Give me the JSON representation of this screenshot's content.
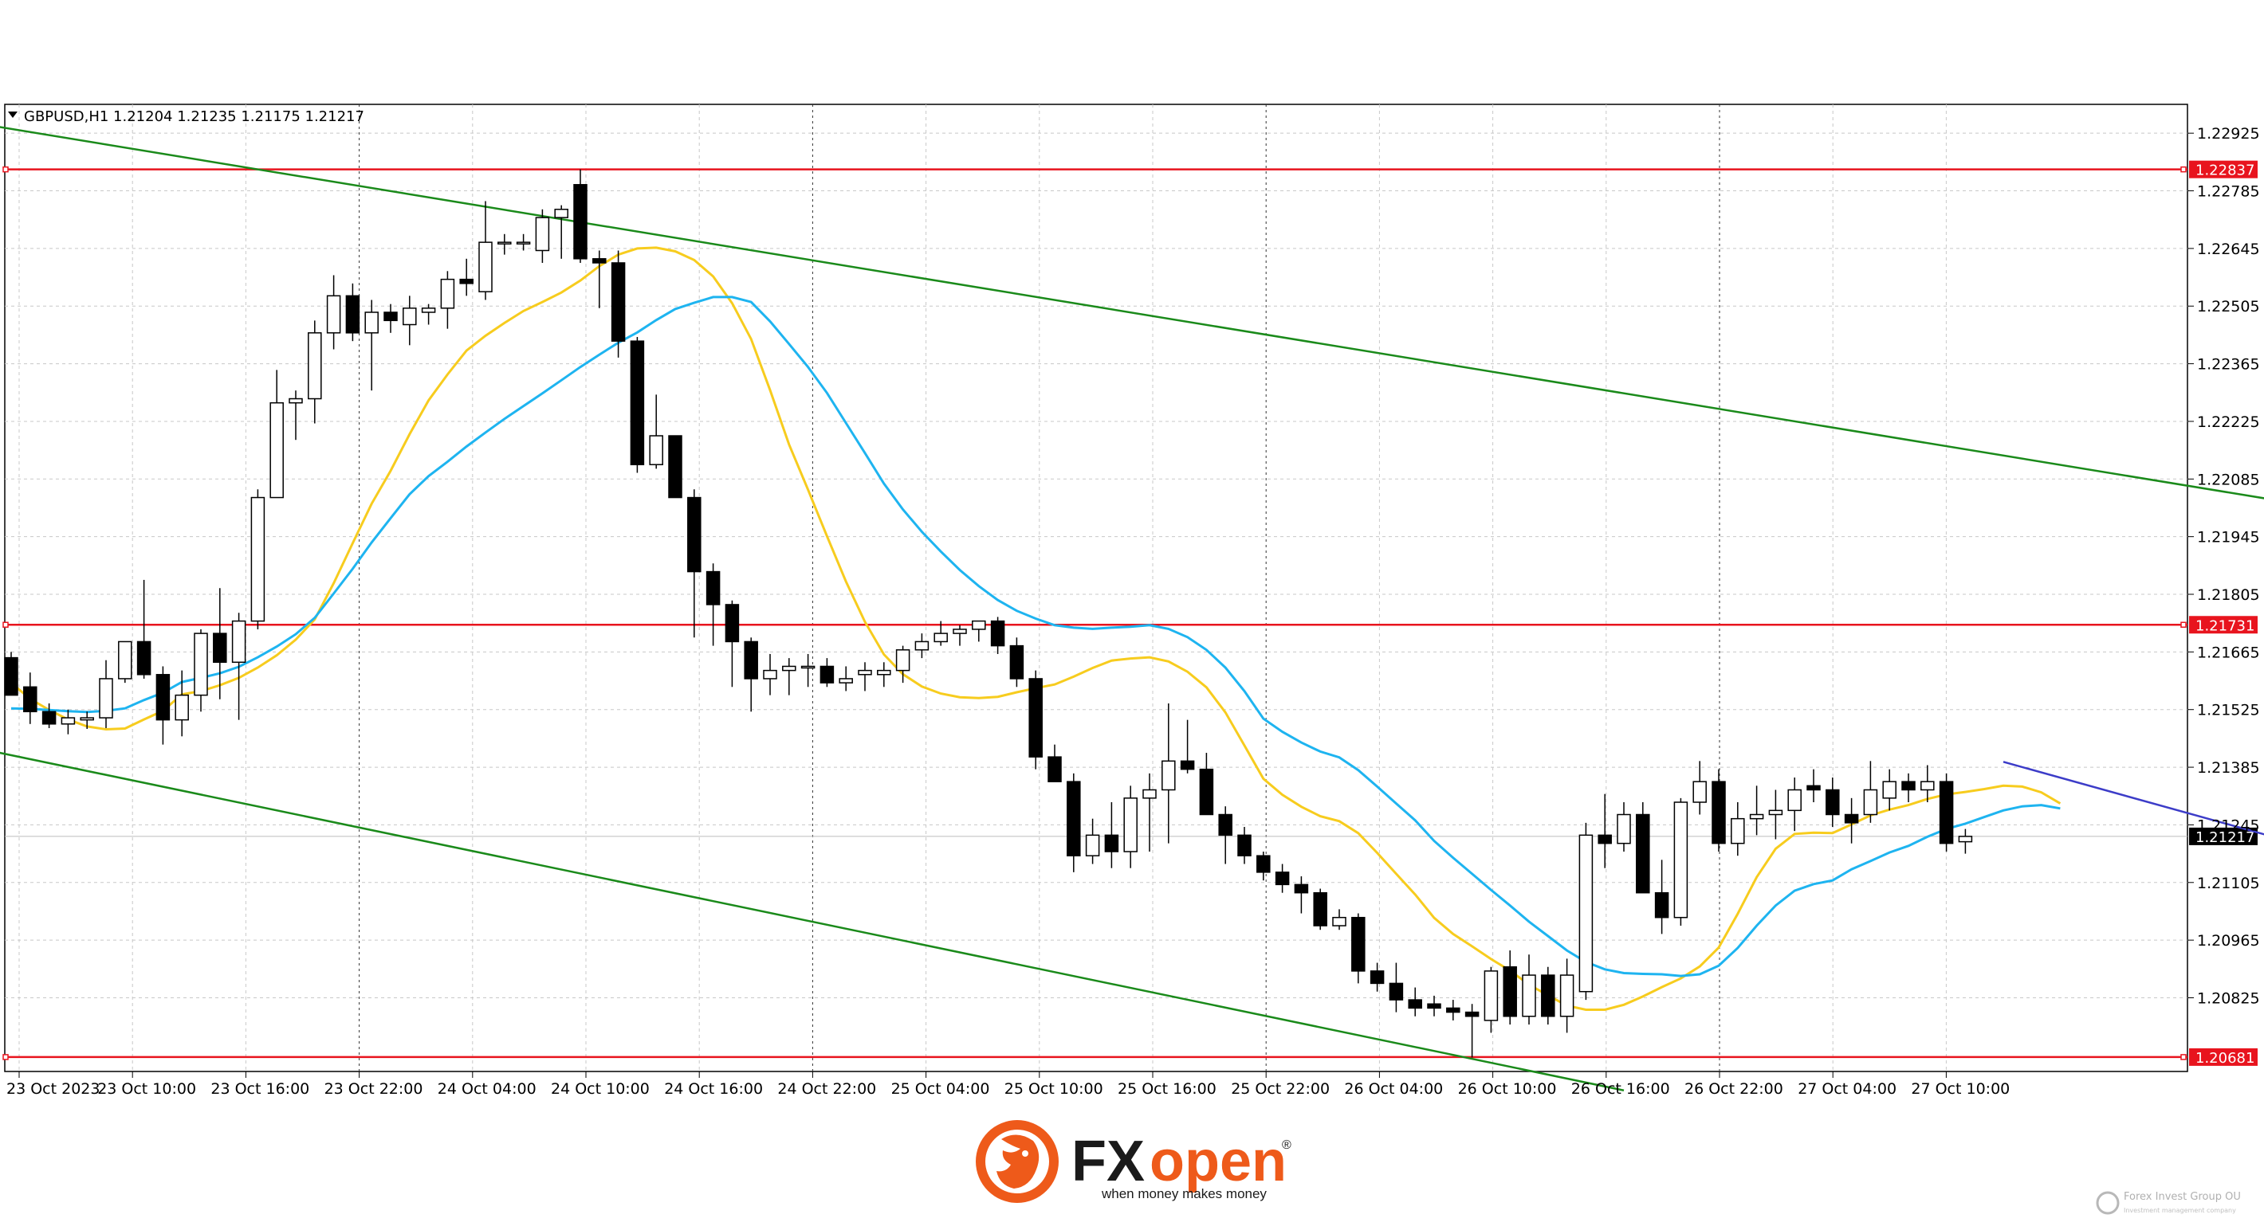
{
  "chart_data": {
    "type": "candlestick",
    "symbol_header": "GBPUSD,H1  1.21204 1.21235 1.21175 1.21217",
    "price_axis": {
      "range": [
        1.20646,
        1.22995
      ],
      "labels": [
        "1.22925",
        "1.22785",
        "1.22645",
        "1.22505",
        "1.22365",
        "1.22225",
        "1.22085",
        "1.21945",
        "1.21805",
        "1.21665",
        "1.21525",
        "1.21385",
        "1.21245",
        "1.21105",
        "1.20965",
        "1.20825"
      ]
    },
    "time_axis": {
      "labels": [
        "23 Oct 2023",
        "23 Oct 10:00",
        "23 Oct 16:00",
        "23 Oct 22:00",
        "24 Oct 04:00",
        "24 Oct 10:00",
        "24 Oct 16:00",
        "24 Oct 22:00",
        "25 Oct 04:00",
        "25 Oct 10:00",
        "25 Oct 16:00",
        "25 Oct 22:00",
        "26 Oct 04:00",
        "26 Oct 10:00",
        "26 Oct 16:00",
        "26 Oct 22:00",
        "27 Oct 04:00",
        "27 Oct 10:00"
      ]
    },
    "horizontal_levels": [
      {
        "price": 1.22837,
        "label": "1.22837",
        "color": "#e8141e"
      },
      {
        "price": 1.21731,
        "label": "1.21731",
        "color": "#e8141e"
      },
      {
        "price": 1.20681,
        "label": "1.20681",
        "color": "#e8141e"
      }
    ],
    "current_price": {
      "price": 1.21217,
      "label": "1.21217"
    },
    "channel_lines": [
      {
        "from": {
          "bar": -3,
          "price": 1.22958
        },
        "to": {
          "bar": 125,
          "price": 1.21991
        },
        "color": "#1a8a1a"
      },
      {
        "from": {
          "bar": -3,
          "price": 1.21443
        },
        "to": {
          "bar": 85,
          "price": 1.206
        },
        "color": "#1a8a1a"
      },
      {
        "from": {
          "bar": 105,
          "price": 1.21398
        },
        "to": {
          "bar": 125,
          "price": 1.21142
        },
        "color": "#3c3cc8"
      }
    ],
    "moving_averages": [
      {
        "color": "#f7cc1e",
        "values": [
          1.2159,
          1.21551,
          1.21524,
          1.21501,
          1.21484,
          1.21477,
          1.21479,
          1.21501,
          1.21522,
          1.21562,
          1.2157,
          1.21584,
          1.21602,
          1.21627,
          1.21657,
          1.21695,
          1.21744,
          1.21832,
          1.21929,
          1.22025,
          1.22105,
          1.22194,
          1.22276,
          1.22339,
          1.22397,
          1.22433,
          1.22464,
          1.22493,
          1.22515,
          1.22538,
          1.22567,
          1.22602,
          1.2263,
          1.22645,
          1.22647,
          1.22638,
          1.22617,
          1.22577,
          1.22512,
          1.22425,
          1.22301,
          1.22169,
          1.22059,
          1.21946,
          1.21836,
          1.21738,
          1.21659,
          1.21611,
          1.21581,
          1.21564,
          1.21555,
          1.21553,
          1.21556,
          1.21567,
          1.21577,
          1.21586,
          1.21605,
          1.21626,
          1.21644,
          1.21649,
          1.21652,
          1.21642,
          1.21617,
          1.21579,
          1.21518,
          1.21438,
          1.21357,
          1.21318,
          1.21289,
          1.21266,
          1.21254,
          1.21225,
          1.21177,
          1.21126,
          1.21076,
          1.21019,
          1.2098,
          1.2095,
          1.20919,
          1.20891,
          1.20857,
          1.20831,
          1.20806,
          1.20796,
          1.20796,
          1.20808,
          1.20828,
          1.20851,
          1.20872,
          1.20901,
          1.20947,
          1.21029,
          1.21118,
          1.21187,
          1.21223,
          1.21226,
          1.21225,
          1.21246,
          1.21268,
          1.21282,
          1.21293,
          1.21308,
          1.21319,
          1.21325,
          1.21332,
          1.2134,
          1.21338,
          1.21324,
          1.21297
        ]
      },
      {
        "color": "#1eb4f0",
        "values": [
          1.21528,
          1.21527,
          1.21524,
          1.21521,
          1.21519,
          1.21522,
          1.21528,
          1.21548,
          1.21566,
          1.21592,
          1.21602,
          1.21613,
          1.21629,
          1.21652,
          1.21678,
          1.21708,
          1.21748,
          1.21807,
          1.21867,
          1.21931,
          1.2199,
          1.22048,
          1.22092,
          1.22127,
          1.22164,
          1.22198,
          1.22231,
          1.22262,
          1.22293,
          1.22325,
          1.22357,
          1.22387,
          1.22416,
          1.22441,
          1.22471,
          1.22498,
          1.22513,
          1.22527,
          1.22527,
          1.22515,
          1.22468,
          1.22413,
          1.22357,
          1.22294,
          1.22221,
          1.22148,
          1.22074,
          1.22011,
          1.21957,
          1.21909,
          1.21864,
          1.21825,
          1.21791,
          1.21765,
          1.21746,
          1.2173,
          1.21724,
          1.21721,
          1.21724,
          1.21726,
          1.2173,
          1.21721,
          1.21701,
          1.2167,
          1.21627,
          1.2157,
          1.21503,
          1.21471,
          1.21445,
          1.21423,
          1.21409,
          1.21378,
          1.21338,
          1.21297,
          1.21256,
          1.21206,
          1.21165,
          1.21126,
          1.21087,
          1.21049,
          1.2101,
          1.20975,
          1.2094,
          1.20912,
          1.20894,
          1.20885,
          1.20883,
          1.20882,
          1.20878,
          1.20882,
          1.20903,
          1.20946,
          1.21,
          1.21049,
          1.21085,
          1.21101,
          1.2111,
          1.21137,
          1.21157,
          1.21178,
          1.21194,
          1.21216,
          1.21235,
          1.21248,
          1.21264,
          1.2128,
          1.2129,
          1.21293,
          1.21285
        ]
      }
    ],
    "candles": [
      [
        1.21651,
        1.21665,
        1.2156,
        1.2156
      ],
      [
        1.2158,
        1.21615,
        1.2149,
        1.2152
      ],
      [
        1.2152,
        1.2154,
        1.2148,
        1.2149
      ],
      [
        1.2149,
        1.21525,
        1.21465,
        1.21505
      ],
      [
        1.215,
        1.2152,
        1.21478,
        1.21505
      ],
      [
        1.21505,
        1.21645,
        1.2148,
        1.216
      ],
      [
        1.216,
        1.2169,
        1.2159,
        1.2169
      ],
      [
        1.2169,
        1.2184,
        1.216,
        1.2161
      ],
      [
        1.2161,
        1.2163,
        1.2144,
        1.215
      ],
      [
        1.215,
        1.2162,
        1.2146,
        1.2156
      ],
      [
        1.2156,
        1.2172,
        1.2152,
        1.2171
      ],
      [
        1.2171,
        1.2182,
        1.2155,
        1.2164
      ],
      [
        1.2164,
        1.2176,
        1.215,
        1.2174
      ],
      [
        1.2174,
        1.2206,
        1.2172,
        1.2204
      ],
      [
        1.2204,
        1.2235,
        1.2204,
        1.2227
      ],
      [
        1.2227,
        1.223,
        1.2218,
        1.2228
      ],
      [
        1.2228,
        1.2247,
        1.2222,
        1.2244
      ],
      [
        1.2244,
        1.2258,
        1.224,
        1.2253
      ],
      [
        1.2253,
        1.2256,
        1.2242,
        1.2244
      ],
      [
        1.2244,
        1.2252,
        1.223,
        1.2249
      ],
      [
        1.2249,
        1.2251,
        1.2244,
        1.2247
      ],
      [
        1.2246,
        1.2253,
        1.2241,
        1.225
      ],
      [
        1.2249,
        1.2251,
        1.2246,
        1.225
      ],
      [
        1.225,
        1.2259,
        1.2245,
        1.2257
      ],
      [
        1.2257,
        1.2262,
        1.2253,
        1.2256
      ],
      [
        1.2254,
        1.2276,
        1.2252,
        1.2266
      ],
      [
        1.2266,
        1.2268,
        1.2263,
        1.2266
      ],
      [
        1.2266,
        1.2268,
        1.2264,
        1.2266
      ],
      [
        1.2264,
        1.2274,
        1.2261,
        1.2272
      ],
      [
        1.2272,
        1.2275,
        1.2262,
        1.2274
      ],
      [
        1.228,
        1.22837,
        1.2261,
        1.2262
      ],
      [
        1.2262,
        1.2264,
        1.225,
        1.2261
      ],
      [
        1.2261,
        1.2264,
        1.2238,
        1.2242
      ],
      [
        1.2242,
        1.2243,
        1.221,
        1.2212
      ],
      [
        1.2212,
        1.2229,
        1.2211,
        1.2219
      ],
      [
        1.2219,
        1.2219,
        1.2204,
        1.2204
      ],
      [
        1.2204,
        1.2206,
        1.217,
        1.2186
      ],
      [
        1.2186,
        1.2188,
        1.2168,
        1.2178
      ],
      [
        1.2178,
        1.2179,
        1.2158,
        1.2169
      ],
      [
        1.2169,
        1.217,
        1.2152,
        1.216
      ],
      [
        1.216,
        1.2166,
        1.2156,
        1.2162
      ],
      [
        1.2162,
        1.2165,
        1.2156,
        1.2163
      ],
      [
        1.2163,
        1.2166,
        1.2158,
        1.2163
      ],
      [
        1.2163,
        1.2165,
        1.2158,
        1.2159
      ],
      [
        1.2159,
        1.2163,
        1.2157,
        1.216
      ],
      [
        1.2161,
        1.2164,
        1.2157,
        1.2162
      ],
      [
        1.2161,
        1.2164,
        1.2158,
        1.2162
      ],
      [
        1.2162,
        1.2168,
        1.2159,
        1.2167
      ],
      [
        1.2167,
        1.2171,
        1.2165,
        1.2169
      ],
      [
        1.2169,
        1.2174,
        1.2168,
        1.2171
      ],
      [
        1.2171,
        1.2173,
        1.2168,
        1.2172
      ],
      [
        1.2172,
        1.2174,
        1.2169,
        1.2174
      ],
      [
        1.2174,
        1.2175,
        1.2166,
        1.2168
      ],
      [
        1.2168,
        1.217,
        1.2158,
        1.216
      ],
      [
        1.216,
        1.2162,
        1.2138,
        1.2141
      ],
      [
        1.2141,
        1.2144,
        1.2135,
        1.2135
      ],
      [
        1.2135,
        1.2137,
        1.2113,
        1.2117
      ],
      [
        1.2117,
        1.2126,
        1.2115,
        1.2122
      ],
      [
        1.2122,
        1.213,
        1.2114,
        1.2118
      ],
      [
        1.2118,
        1.2134,
        1.2114,
        1.2131
      ],
      [
        1.2131,
        1.2137,
        1.2118,
        1.2133
      ],
      [
        1.2133,
        1.2154,
        1.212,
        1.214
      ],
      [
        1.214,
        1.215,
        1.2137,
        1.2138
      ],
      [
        1.2138,
        1.2142,
        1.2127,
        1.2127
      ],
      [
        1.2127,
        1.2129,
        1.2115,
        1.2122
      ],
      [
        1.2122,
        1.2124,
        1.2115,
        1.2117
      ],
      [
        1.2117,
        1.2118,
        1.2111,
        1.2113
      ],
      [
        1.2113,
        1.2115,
        1.2108,
        1.211
      ],
      [
        1.211,
        1.2112,
        1.2103,
        1.2108
      ],
      [
        1.2108,
        1.2109,
        1.2099,
        1.21
      ],
      [
        1.21,
        1.2104,
        1.2099,
        1.2102
      ],
      [
        1.2102,
        1.2103,
        1.2086,
        1.2089
      ],
      [
        1.2089,
        1.2091,
        1.2084,
        1.2086
      ],
      [
        1.2086,
        1.2091,
        1.2079,
        1.2082
      ],
      [
        1.2082,
        1.2085,
        1.2078,
        1.208
      ],
      [
        1.2081,
        1.2083,
        1.2078,
        1.208
      ],
      [
        1.208,
        1.2082,
        1.2077,
        1.2079
      ],
      [
        1.2079,
        1.2081,
        1.2068,
        1.2078
      ],
      [
        1.2077,
        1.209,
        1.2074,
        1.2089
      ],
      [
        1.209,
        1.2094,
        1.2076,
        1.2078
      ],
      [
        1.2078,
        1.2093,
        1.2076,
        1.2088
      ],
      [
        1.2088,
        1.209,
        1.2076,
        1.2078
      ],
      [
        1.2078,
        1.2092,
        1.2074,
        1.2088
      ],
      [
        1.2084,
        1.2125,
        1.2082,
        1.2122
      ],
      [
        1.2122,
        1.2132,
        1.2114,
        1.212
      ],
      [
        1.212,
        1.213,
        1.2118,
        1.2127
      ],
      [
        1.2127,
        1.213,
        1.2108,
        1.2108
      ],
      [
        1.2108,
        1.2116,
        1.2098,
        1.2102
      ],
      [
        1.2102,
        1.2131,
        1.21,
        1.213
      ],
      [
        1.213,
        1.214,
        1.2127,
        1.2135
      ],
      [
        1.2135,
        1.2138,
        1.2118,
        1.212
      ],
      [
        1.212,
        1.213,
        1.2117,
        1.2126
      ],
      [
        1.2126,
        1.2134,
        1.2122,
        1.2127
      ],
      [
        1.2127,
        1.2133,
        1.2121,
        1.2128
      ],
      [
        1.2128,
        1.2136,
        1.2123,
        1.2133
      ],
      [
        1.2134,
        1.2138,
        1.213,
        1.2133
      ],
      [
        1.2133,
        1.2136,
        1.2124,
        1.2127
      ],
      [
        1.2127,
        1.2131,
        1.212,
        1.2125
      ],
      [
        1.2127,
        1.214,
        1.2125,
        1.2133
      ],
      [
        1.2131,
        1.2138,
        1.2128,
        1.2135
      ],
      [
        1.2135,
        1.2137,
        1.213,
        1.2133
      ],
      [
        1.2133,
        1.2139,
        1.213,
        1.2135
      ],
      [
        1.2135,
        1.2137,
        1.2118,
        1.212
      ],
      [
        1.21204,
        1.21235,
        1.21175,
        1.21217
      ]
    ]
  },
  "branding": {
    "logo_text_fx": "FX",
    "logo_text_open": "open",
    "logo_registered": "®",
    "logo_tagline": "when money makes money",
    "watermark_title": "Forex Invest Group OU",
    "watermark_sub": "Investment management company",
    "colors": {
      "fx": "#1a1a1a",
      "open": "#ee5a1a",
      "lion": "#ee5a1a"
    }
  }
}
